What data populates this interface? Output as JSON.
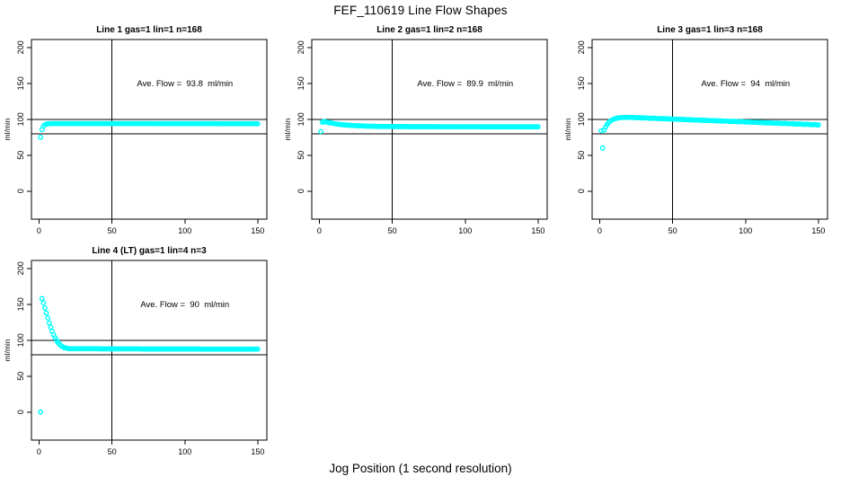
{
  "page": {
    "title": "FEF_110619  Line Flow Shapes",
    "xlabel_bottom": "Jog Position (1 second resolution)",
    "background_color": "#ffffff",
    "point_color": "#00FFFF",
    "line_color": "#000000"
  },
  "chart_data": [
    {
      "type": "scatter",
      "title": "Line 1 gas=1 lin=1 n=168",
      "annotation": "Ave. Flow =  93.8  ml/min",
      "avg_flow": 93.8,
      "ylabel": "ml/min",
      "x_ticks": [
        0,
        50,
        100,
        150
      ],
      "y_ticks": [
        0,
        50,
        100,
        150,
        200
      ],
      "xlim": [
        -5.2,
        156.2
      ],
      "ylim": [
        -39,
        211
      ],
      "hlines": [
        100,
        80
      ],
      "vlines": [
        50
      ],
      "grid": false,
      "x_start": 1,
      "x_step": 1,
      "values": [
        75,
        85.7,
        90.4,
        92.4,
        93.3,
        93.7,
        93.8,
        93.9,
        94,
        94,
        94,
        94,
        94,
        94,
        94,
        94,
        94,
        94,
        94,
        94,
        94,
        94,
        94,
        94,
        94,
        94,
        94,
        94,
        94,
        94,
        94,
        94,
        94,
        94,
        94,
        94,
        94,
        94,
        94,
        94,
        94,
        94,
        94,
        94,
        94,
        94,
        94,
        94,
        94,
        94,
        94,
        94,
        94,
        94,
        94,
        94,
        94,
        94,
        94,
        94,
        94,
        94,
        94,
        94,
        94,
        94,
        94,
        94,
        94,
        94,
        94,
        94,
        94,
        94,
        94,
        94,
        94,
        94,
        94,
        93.9,
        93.9,
        93.9,
        93.9,
        93.9,
        93.9,
        93.9,
        93.9,
        93.9,
        93.9,
        93.9,
        93.9,
        93.9,
        93.9,
        93.9,
        93.9,
        93.9,
        93.9,
        93.9,
        93.9,
        93.9,
        93.9,
        93.9,
        93.9,
        93.9,
        93.9,
        93.9,
        93.9,
        93.9,
        93.9,
        93.9,
        93.9,
        93.9,
        93.9,
        93.9,
        93.9,
        93.9,
        93.9,
        93.9,
        93.9,
        93.8,
        93.8,
        93.8,
        93.8,
        93.8,
        93.8,
        93.8,
        93.8,
        93.8,
        93.8,
        93.8,
        93.8,
        93.8,
        93.8,
        93.8,
        93.8,
        93.8,
        93.8,
        93.8,
        93.8,
        93.8,
        93.8,
        93.8,
        93.8,
        93.8,
        93.8,
        93.8,
        93.8,
        93.8,
        93.8,
        93.8
      ]
    },
    {
      "type": "scatter",
      "title": "Line 2 gas=1 lin=2 n=168",
      "annotation": "Ave. Flow =  89.9  ml/min",
      "avg_flow": 89.9,
      "ylabel": "ml/min",
      "x_ticks": [
        0,
        50,
        100,
        150
      ],
      "y_ticks": [
        0,
        50,
        100,
        150,
        200
      ],
      "xlim": [
        -5.2,
        156.2
      ],
      "ylim": [
        -39,
        211
      ],
      "hlines": [
        100,
        80
      ],
      "vlines": [
        50
      ],
      "grid": false,
      "x_start": 1,
      "x_step": 1,
      "values": [
        83,
        95.8,
        97,
        96.5,
        96,
        95.6,
        95.2,
        94.8,
        94.4,
        94.1,
        93.7,
        93.4,
        93.1,
        92.9,
        92.6,
        92.4,
        92.2,
        92,
        91.9,
        91.8,
        91.6,
        91.5,
        91.3,
        91.2,
        91.1,
        91,
        90.9,
        90.8,
        90.8,
        90.7,
        90.6,
        90.5,
        90.5,
        90.4,
        90.4,
        90.3,
        90.3,
        90.2,
        90.2,
        90.1,
        90,
        90,
        90,
        90,
        90,
        89.9,
        89.9,
        89.9,
        89.9,
        89.9,
        89.8,
        89.8,
        89.8,
        89.8,
        89.8,
        89.8,
        89.8,
        89.8,
        89.8,
        89.8,
        89.7,
        89.7,
        89.7,
        89.7,
        89.7,
        89.7,
        89.7,
        89.7,
        89.7,
        89.7,
        89.7,
        89.7,
        89.7,
        89.7,
        89.7,
        89.7,
        89.7,
        89.7,
        89.7,
        89.7,
        89.6,
        89.6,
        89.6,
        89.6,
        89.6,
        89.6,
        89.6,
        89.6,
        89.6,
        89.6,
        89.6,
        89.6,
        89.6,
        89.6,
        89.6,
        89.6,
        89.6,
        89.6,
        89.6,
        89.6,
        89.6,
        89.6,
        89.6,
        89.6,
        89.6,
        89.6,
        89.6,
        89.6,
        89.6,
        89.6,
        89.5,
        89.5,
        89.5,
        89.5,
        89.5,
        89.5,
        89.5,
        89.5,
        89.5,
        89.5,
        89.5,
        89.5,
        89.5,
        89.5,
        89.5,
        89.5,
        89.5,
        89.5,
        89.5,
        89.5,
        89.5,
        89.5,
        89.5,
        89.5,
        89.5,
        89.5,
        89.5,
        89.5,
        89.5,
        89.5,
        89.5,
        89.5,
        89.5,
        89.5,
        89.5,
        89.5,
        89.5,
        89.5,
        89.5,
        89.5
      ]
    },
    {
      "type": "scatter",
      "title": "Line 3 gas=1 lin=3 n=168",
      "annotation": "Ave. Flow =  94  ml/min",
      "avg_flow": 94,
      "ylabel": "ml/min",
      "x_ticks": [
        0,
        50,
        100,
        150
      ],
      "y_ticks": [
        0,
        50,
        100,
        150,
        200
      ],
      "xlim": [
        -5.2,
        156.2
      ],
      "ylim": [
        -39,
        211
      ],
      "hlines": [
        100,
        80
      ],
      "vlines": [
        50
      ],
      "grid": false,
      "x_start": 1,
      "x_step": 1,
      "values": [
        84,
        60,
        85,
        89,
        92.5,
        95,
        97,
        98.5,
        99.6,
        100.4,
        101.1,
        101.6,
        102,
        102.2,
        102.4,
        102.6,
        102.7,
        102.8,
        102.6,
        102.6,
        102.6,
        102.6,
        102.6,
        102.2,
        102.2,
        102.2,
        102.2,
        102.2,
        101.8,
        101.8,
        101.8,
        101.8,
        101.8,
        101.4,
        101.4,
        101.4,
        101.4,
        101.4,
        101,
        101,
        101,
        101,
        101,
        100.6,
        100.6,
        100.6,
        100.6,
        100.6,
        100.2,
        100.2,
        100.2,
        100.2,
        100.2,
        99.8,
        99.8,
        99.8,
        99.8,
        99.8,
        99.4,
        99.4,
        99.4,
        99.4,
        99.4,
        99,
        99,
        99,
        99,
        99,
        98.6,
        98.6,
        98.6,
        98.6,
        98.6,
        98.2,
        98.2,
        98.2,
        98.2,
        98.2,
        97.8,
        97.8,
        97.8,
        97.8,
        97.8,
        97.4,
        97.4,
        97.4,
        97.4,
        97.4,
        97,
        97,
        97,
        97,
        97,
        96.6,
        96.6,
        96.6,
        96.6,
        96.6,
        96.2,
        96.2,
        96.2,
        96.2,
        96.2,
        95.8,
        95.8,
        95.8,
        95.8,
        95.8,
        95.4,
        95.4,
        95.4,
        95.4,
        95.4,
        95,
        95,
        95,
        95,
        95,
        94.6,
        94.6,
        94.6,
        94.6,
        94.6,
        94.2,
        94.2,
        94.2,
        94.2,
        94.2,
        93.8,
        93.8,
        93.8,
        93.8,
        93.8,
        93.4,
        93.4,
        93.4,
        93.4,
        93.4,
        93,
        93,
        93,
        93,
        93,
        92.6,
        92.6,
        92.6,
        92.6,
        92.6,
        92.2,
        92.2
      ]
    },
    {
      "type": "scatter",
      "title": "Line 4 (LT) gas=1 lin=4 n=3",
      "annotation": "Ave. Flow =  90  ml/min",
      "avg_flow": 90,
      "ylabel": "ml/min",
      "x_ticks": [
        0,
        50,
        100,
        150
      ],
      "y_ticks": [
        0,
        50,
        100,
        150,
        200
      ],
      "xlim": [
        -5.2,
        156.2
      ],
      "ylim": [
        -39,
        211
      ],
      "hlines": [
        100,
        80
      ],
      "vlines": [
        50
      ],
      "grid": false,
      "x_start": 1,
      "x_step": 1,
      "values": [
        0,
        158,
        152,
        145,
        138,
        131,
        124,
        118,
        112.5,
        107.5,
        103.5,
        100,
        97,
        94.5,
        92.5,
        91,
        90,
        89.3,
        88.8,
        88.5,
        88.2,
        88.2,
        88.2,
        88.2,
        88.2,
        88.2,
        88.2,
        88.2,
        88.2,
        88.2,
        88.2,
        88.2,
        88.2,
        88.2,
        88.2,
        88.2,
        88.2,
        88.2,
        88.2,
        88.2,
        88,
        88,
        88,
        88,
        88,
        88,
        88,
        88,
        88,
        88,
        88,
        88,
        88,
        88,
        88,
        88,
        88,
        88,
        88,
        88,
        88,
        88,
        88,
        88,
        88,
        88,
        88,
        88,
        88,
        88,
        87.8,
        87.8,
        87.8,
        87.8,
        87.8,
        87.8,
        87.8,
        87.8,
        87.8,
        87.8,
        87.8,
        87.8,
        87.8,
        87.8,
        87.8,
        87.8,
        87.8,
        87.8,
        87.8,
        87.8,
        87.8,
        87.8,
        87.8,
        87.8,
        87.8,
        87.8,
        87.8,
        87.8,
        87.8,
        87.8,
        87.8,
        87.8,
        87.8,
        87.8,
        87.8,
        87.8,
        87.8,
        87.8,
        87.8,
        87.8,
        87.6,
        87.6,
        87.6,
        87.6,
        87.6,
        87.6,
        87.6,
        87.6,
        87.6,
        87.6,
        87.6,
        87.6,
        87.6,
        87.6,
        87.6,
        87.6,
        87.6,
        87.6,
        87.6,
        87.6,
        87.6,
        87.6,
        87.6,
        87.6,
        87.6,
        87.6,
        87.6,
        87.6,
        87.6,
        87.6,
        87.6,
        87.6,
        87.6,
        87.6,
        87.6,
        87.6,
        87.6,
        87.6,
        87.6,
        87.6
      ]
    }
  ]
}
